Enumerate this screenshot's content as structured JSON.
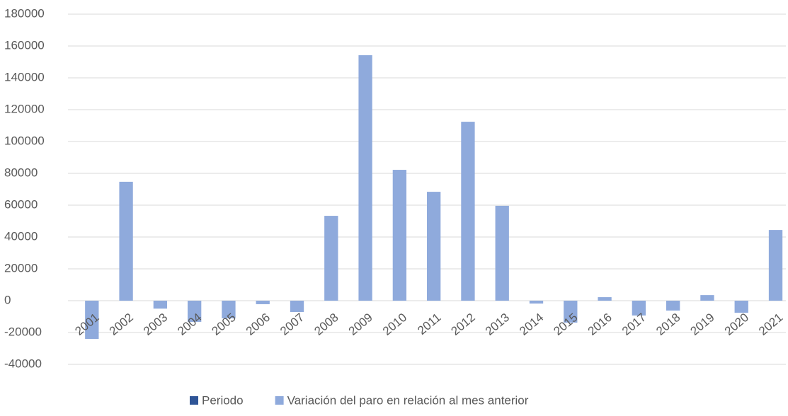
{
  "chart_data": {
    "type": "bar",
    "categories": [
      "2001",
      "2002",
      "2003",
      "2004",
      "2005",
      "2006",
      "2007",
      "2008",
      "2009",
      "2010",
      "2011",
      "2012",
      "2013",
      "2014",
      "2015",
      "2016",
      "2017",
      "2018",
      "2019",
      "2020",
      "2021"
    ],
    "series": [
      {
        "name": "Periodo",
        "color": "#2f5597",
        "values": [
          null,
          null,
          null,
          null,
          null,
          null,
          null,
          null,
          null,
          null,
          null,
          null,
          null,
          null,
          null,
          null,
          null,
          null,
          null,
          null,
          null
        ]
      },
      {
        "name": "Variación del paro en relación al mes anterior",
        "color": "#8faadc",
        "values": [
          -24000,
          74700,
          -5000,
          -13300,
          -11100,
          -2200,
          -7100,
          53300,
          154200,
          82200,
          68400,
          112400,
          59600,
          -1800,
          -13800,
          2200,
          -9300,
          -6200,
          3500,
          -7600,
          44400
        ]
      }
    ],
    "ylim": [
      -40000,
      180000
    ],
    "yticks": [
      -40000,
      -20000,
      0,
      20000,
      40000,
      60000,
      80000,
      100000,
      120000,
      140000,
      160000,
      180000
    ],
    "grid": true,
    "legend": "bottom"
  }
}
